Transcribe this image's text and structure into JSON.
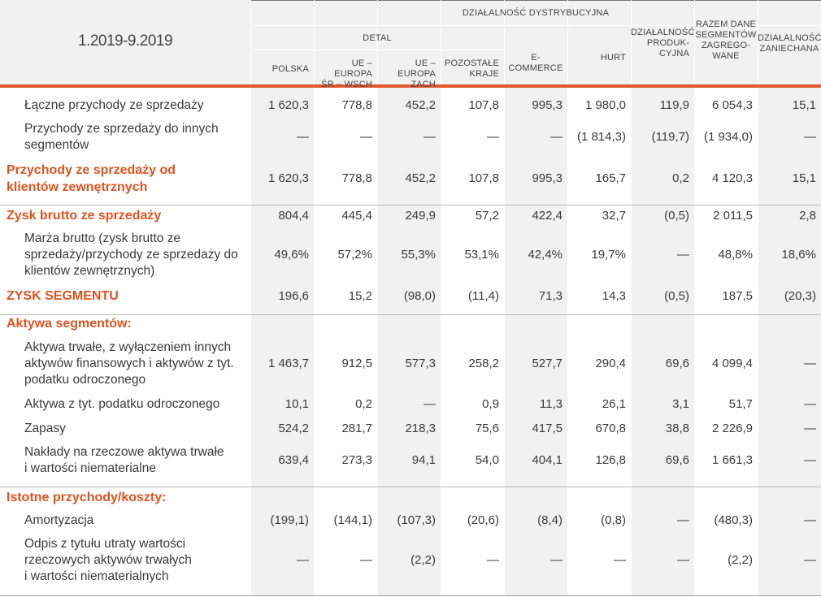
{
  "table": {
    "period": "1.2019-9.2019",
    "headers": {
      "group": "DZIAŁALNOŚĆ DYSTRYBUCYJNA",
      "subgroup": "DETAL",
      "columns": [
        "POLSKA",
        "UE – EUROPA\nŚR – WSCH",
        "UE – EUROPA\nZACH",
        "POZOSTAŁE\nKRAJE",
        "E-COMMERCE",
        "HURT",
        "DZIAŁALNOŚĆ\nPRODUK-\nCYJNA",
        "RAZEM DANE\nSEGMENTÓW\nZAGREGO-\nWANE",
        "DZIAŁALNOŚĆ\nZANIECHANA"
      ]
    },
    "rows": [
      {
        "label": "Łączne przychody ze sprzedaży",
        "values": [
          "1 620,3",
          "778,8",
          "452,2",
          "107,8",
          "995,3",
          "1 980,0",
          "119,9",
          "6 054,3",
          "15,1"
        ]
      },
      {
        "label": "Przychody ze sprzedaży do innych\nsegmentów",
        "values": [
          "—",
          "—",
          "—",
          "—",
          "—",
          "(1 814,3)",
          "(119,7)",
          "(1 934,0)",
          "—"
        ]
      },
      {
        "label": "Przychody ze sprzedaży od\nklientów zewnętrznych",
        "values": [
          "1 620,3",
          "778,8",
          "452,2",
          "107,8",
          "995,3",
          "165,7",
          "0,2",
          "4 120,3",
          "15,1"
        ]
      },
      {
        "label": "Zysk brutto ze sprzedaży",
        "values": [
          "804,4",
          "445,4",
          "249,9",
          "57,2",
          "422,4",
          "32,7",
          "(0,5)",
          "2 011,5",
          "2,8"
        ]
      },
      {
        "label": "Marża brutto (zysk brutto ze\nsprzedaży/przychody ze sprzedaży do\nklientów zewnętrznych)",
        "values": [
          "49,6%",
          "57,2%",
          "55,3%",
          "53,1%",
          "42,4%",
          "19,7%",
          "—",
          "48,8%",
          "18,6%"
        ]
      },
      {
        "label": "ZYSK SEGMENTU",
        "values": [
          "196,6",
          "15,2",
          "(98,0)",
          "(11,4)",
          "71,3",
          "14,3",
          "(0,5)",
          "187,5",
          "(20,3)"
        ]
      },
      {
        "label": "Aktywa segmentów:",
        "values": []
      },
      {
        "label": "Aktywa trwałe, z wyłączeniem innych\naktywów finansowych i aktywów z tyt.\npodatku odroczonego",
        "values": [
          "1 463,7",
          "912,5",
          "577,3",
          "258,2",
          "527,7",
          "290,4",
          "69,6",
          "4 099,4",
          "—"
        ]
      },
      {
        "label": "Aktywa z tyt. podatku odroczonego",
        "values": [
          "10,1",
          "0,2",
          "—",
          "0,9",
          "11,3",
          "26,1",
          "3,1",
          "51,7",
          "—"
        ]
      },
      {
        "label": "Zapasy",
        "values": [
          "524,2",
          "281,7",
          "218,3",
          "75,6",
          "417,5",
          "670,8",
          "38,8",
          "2 226,9",
          "—"
        ]
      },
      {
        "label": "Nakłady na rzeczowe aktywa trwałe\ni wartości niematerialne",
        "values": [
          "639,4",
          "273,3",
          "94,1",
          "54,0",
          "404,1",
          "126,8",
          "69,6",
          "1 661,3",
          "—"
        ]
      },
      {
        "label": "Istotne przychody/koszty:",
        "values": []
      },
      {
        "label": "Amortyzacja",
        "values": [
          "(199,1)",
          "(144,1)",
          "(107,3)",
          "(20,6)",
          "(8,4)",
          "(0,8)",
          "—",
          "(480,3)",
          "—"
        ]
      },
      {
        "label": "Odpis z tytułu utraty wartości\nrzeczowych aktywów trwałych\ni wartości niematerialnych",
        "values": [
          "—",
          "—",
          "(2,2)",
          "—",
          "—",
          "—",
          "—",
          "(2,2)",
          "—"
        ]
      }
    ]
  },
  "colors": {
    "accent": "#e2582b",
    "shade": "#f1f1f1"
  }
}
